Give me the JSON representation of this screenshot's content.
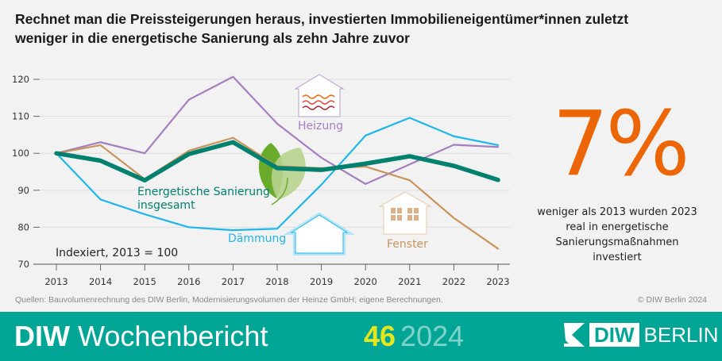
{
  "title": "Rechnet man die Preissteigerungen heraus, investierten Immobilieneigentümer*innen zuletzt weniger in die energetische Sanierung als zehn Jahre zuvor",
  "chart_data": {
    "type": "line",
    "categories": [
      "2013",
      "2014",
      "2015",
      "2016",
      "2017",
      "2018",
      "2019",
      "2020",
      "2021",
      "2022",
      "2023"
    ],
    "ylim": [
      70,
      120
    ],
    "yticks": [
      70,
      80,
      90,
      100,
      110,
      120
    ],
    "grid": true,
    "annotation": "Indexiert, 2013 = 100",
    "series": [
      {
        "name": "Heizung",
        "color": "#a57fc0",
        "values": [
          100,
          103,
          100,
          114.5,
          120.7,
          108,
          98.8,
          91.7,
          97,
          102.3,
          101.7
        ]
      },
      {
        "name": "Fenster",
        "color": "#c9935a",
        "values": [
          100,
          102.2,
          93,
          100.7,
          104.2,
          96.5,
          96,
          96.4,
          92.7,
          82.5,
          74.2
        ]
      },
      {
        "name": "Dämmung",
        "color": "#1fb6e9",
        "values": [
          100,
          87.5,
          83.5,
          80,
          79.2,
          79.6,
          91.5,
          104.8,
          109.6,
          104.6,
          102.2
        ]
      },
      {
        "name": "Energetische Sanierung insgesamt",
        "color": "#00806f",
        "values": [
          100,
          98,
          92.7,
          99.8,
          103,
          96,
          95.5,
          97.2,
          99.2,
          96.6,
          92.8
        ]
      }
    ]
  },
  "labels": {
    "total_line1": "Energetische Sanierung",
    "total_line2": "insgesamt",
    "heizung": "Heizung",
    "fenster": "Fenster",
    "daemmung": "Dämmung"
  },
  "highlight": {
    "value": "7%",
    "color": "#ec6608",
    "text": "weniger als 2013 wurden 2023 real in energetische Sanierungsmaßnahmen investiert"
  },
  "source": "Quellen: Bauvolumenrechnung des DIW Berlin, Modernisierungsvolumen der Heinze GmbH; eigene Berechnungen.",
  "copyright": "© DIW Berlin 2024",
  "footer": {
    "brand_bold": "DIW",
    "brand_rest": " Wochenbericht",
    "issue": "46",
    "year": "2024",
    "logo_diw": "DIW",
    "logo_berlin": "BERLIN",
    "color": "#00a596"
  }
}
